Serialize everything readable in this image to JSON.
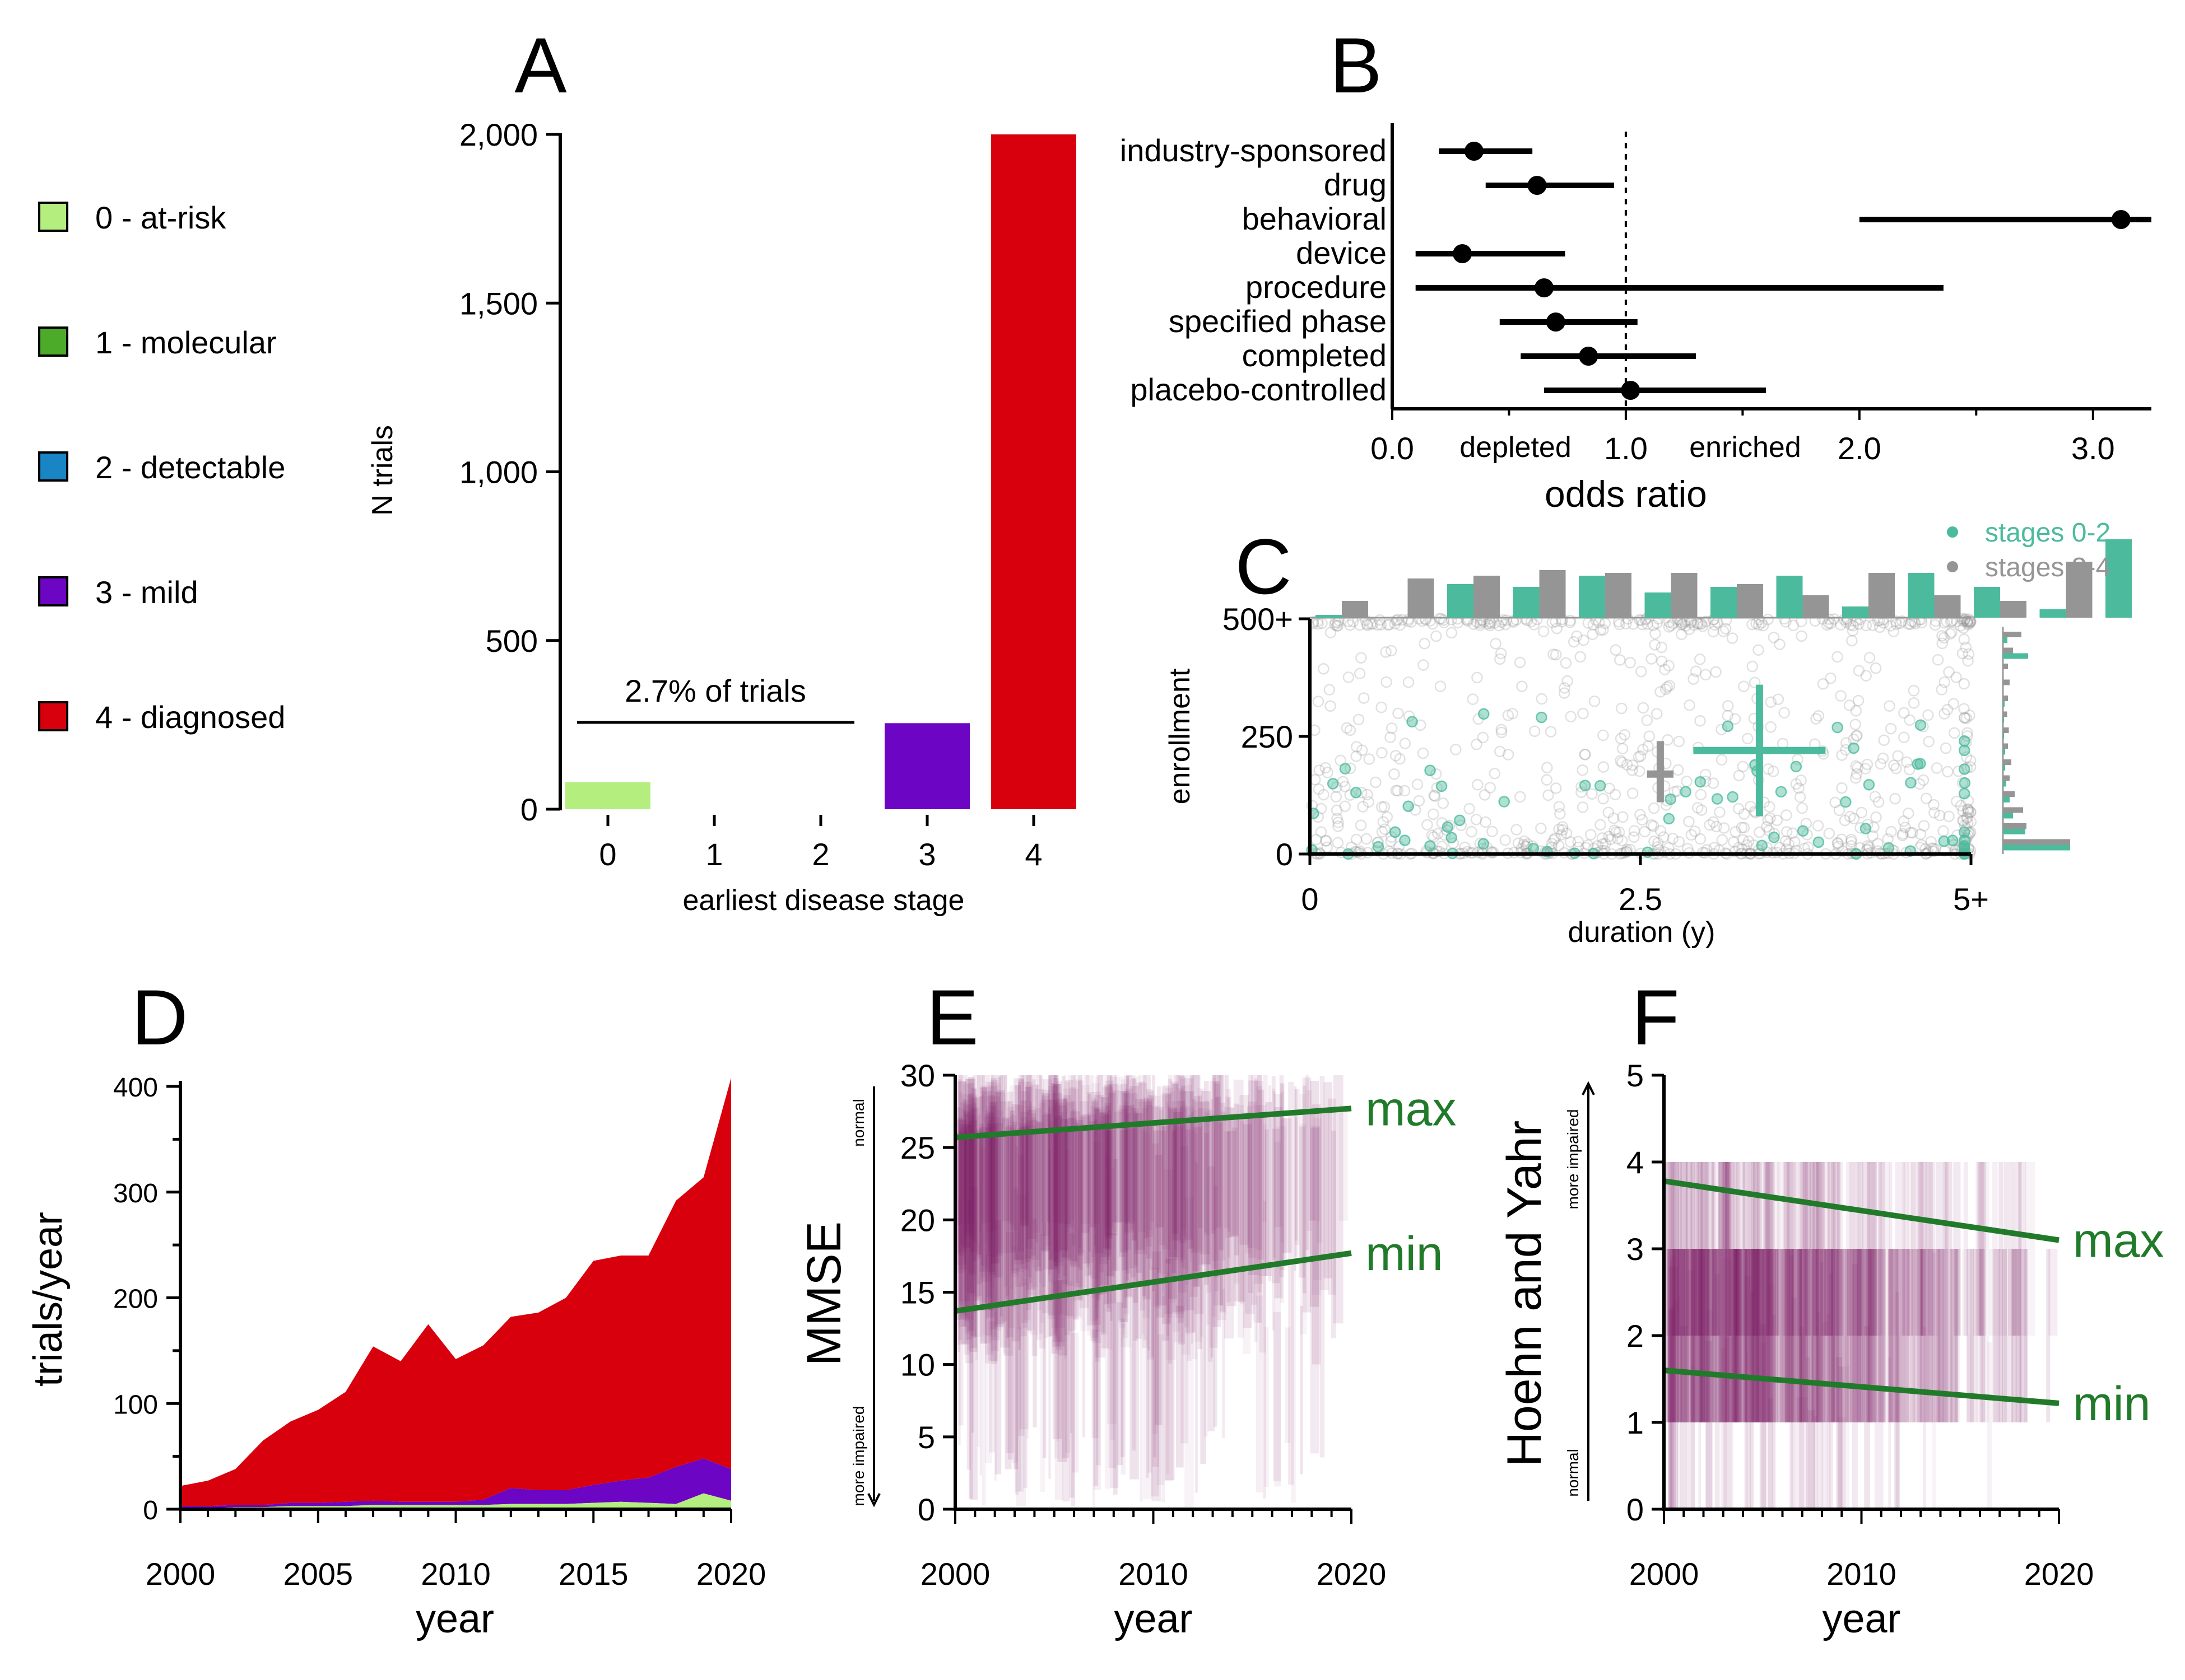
{
  "colors": {
    "stage0": "#b4ee7f",
    "stage1": "#4dab2a",
    "stage2": "#1a85c4",
    "stage3": "#6c05c4",
    "stage4": "#d8000d",
    "teal": "#4cbb9d",
    "gray": "#959595",
    "purple": "#7b1a63",
    "green": "#217a2a"
  },
  "legend": {
    "items": [
      {
        "label": "0 - at-risk",
        "color": "#b4ee7f"
      },
      {
        "label": "1 - molecular",
        "color": "#4dab2a"
      },
      {
        "label": "2 - detectable",
        "color": "#1a85c4"
      },
      {
        "label": "3 - mild",
        "color": "#6c05c4"
      },
      {
        "label": "4 - diagnosed",
        "color": "#d8000d"
      }
    ]
  },
  "chart_data": [
    {
      "panel": "A",
      "type": "bar",
      "xlabel": "earliest disease stage",
      "ylabel": "N trials",
      "ylim": [
        0,
        2000
      ],
      "yticks": [
        "0",
        "500",
        "1,000",
        "1,500",
        "2,000"
      ],
      "categories": [
        "0",
        "1",
        "2",
        "3",
        "4"
      ],
      "values": [
        80,
        0,
        0,
        255,
        2000
      ],
      "colors": [
        "#b4ee7f",
        "#4dab2a",
        "#1a85c4",
        "#6c05c4",
        "#d8000d"
      ],
      "annotation": "2.7% of trials"
    },
    {
      "panel": "B",
      "type": "scatter",
      "xlabel": "odds ratio",
      "xlim": [
        0,
        3.25
      ],
      "xticks": [
        "0.0",
        "1.0",
        "2.0",
        "3.0"
      ],
      "side_labels": [
        "depleted",
        "enriched"
      ],
      "reference_line": 1.0,
      "rows": [
        {
          "label": "industry-sponsored",
          "value": 0.35,
          "low": 0.2,
          "high": 0.6
        },
        {
          "label": "drug",
          "value": 0.62,
          "low": 0.4,
          "high": 0.95
        },
        {
          "label": "behavioral",
          "value": 3.12,
          "low": 2.0,
          "high": 3.25
        },
        {
          "label": "device",
          "value": 0.3,
          "low": 0.1,
          "high": 0.74
        },
        {
          "label": "procedure",
          "value": 0.65,
          "low": 0.1,
          "high": 2.36
        },
        {
          "label": "specified phase",
          "value": 0.7,
          "low": 0.46,
          "high": 1.05
        },
        {
          "label": "completed",
          "value": 0.84,
          "low": 0.55,
          "high": 1.3
        },
        {
          "label": "placebo-controlled",
          "value": 1.02,
          "low": 0.65,
          "high": 1.6
        }
      ]
    },
    {
      "panel": "C",
      "type": "scatter",
      "xlabel": "duration (y)",
      "ylabel": "enrollment",
      "xlim": [
        0,
        5
      ],
      "ylim": [
        0,
        500
      ],
      "xticks": [
        "0",
        "2.5",
        "5+"
      ],
      "yticks": [
        "0",
        "250",
        "500+"
      ],
      "series": [
        {
          "name": "stages 0-2",
          "color": "#4cbb9d",
          "center": [
            3.4,
            220
          ],
          "x_range": [
            2.9,
            3.9
          ],
          "y_range": [
            80,
            360
          ]
        },
        {
          "name": "stages 3-4",
          "color": "#959595",
          "center": [
            2.65,
            170
          ],
          "x_range": [
            2.55,
            2.75
          ],
          "y_range": [
            110,
            240
          ]
        }
      ],
      "top_histogram": {
        "bins": 20,
        "stages_0_2": [
          0.05,
          0,
          0.6,
          0.55,
          0.75,
          0.45,
          0.55,
          0.75,
          0.2,
          0.8,
          0.55,
          0.15,
          1.4
        ],
        "stages_3_4": [
          0.3,
          0.7,
          0.75,
          0.85,
          0.8,
          0.8,
          0.6,
          0.4,
          0.8,
          0.4,
          0.3,
          1.0
        ]
      }
    },
    {
      "panel": "D",
      "type": "area",
      "xlabel": "year",
      "ylabel": "trials/year",
      "xlim": [
        2000,
        2020
      ],
      "ylim": [
        0,
        400
      ],
      "xticks": [
        "2000",
        "2005",
        "2010",
        "2015",
        "2020"
      ],
      "yticks": [
        "0",
        "100",
        "200",
        "300",
        "400"
      ],
      "x": [
        2000,
        2001,
        2002,
        2003,
        2004,
        2005,
        2006,
        2007,
        2008,
        2009,
        2010,
        2011,
        2012,
        2013,
        2014,
        2015,
        2016,
        2017,
        2018,
        2019,
        2020
      ],
      "series": [
        {
          "color": "#b4ee7f",
          "values": [
            1,
            1,
            2,
            2,
            3,
            3,
            3,
            4,
            4,
            4,
            4,
            4,
            5,
            5,
            5,
            6,
            7,
            6,
            5,
            15,
            8
          ]
        },
        {
          "color": "#6c05c4",
          "values": [
            2,
            2,
            2,
            2,
            3,
            3,
            4,
            4,
            3,
            3,
            3,
            5,
            15,
            13,
            13,
            17,
            20,
            24,
            35,
            33,
            30
          ]
        },
        {
          "color": "#d8000d",
          "values": [
            19,
            24,
            34,
            61,
            77,
            88,
            104,
            146,
            133,
            168,
            135,
            146,
            162,
            168,
            182,
            212,
            213,
            210,
            252,
            266,
            370
          ]
        }
      ]
    },
    {
      "panel": "E",
      "type": "heatmap",
      "xlabel": "year",
      "ylabel": "MMSE",
      "xlim": [
        2000,
        2020
      ],
      "ylim": [
        0,
        30
      ],
      "xticks": [
        "2000",
        "2010",
        "2020"
      ],
      "yticks": [
        "0",
        "5",
        "10",
        "15",
        "20",
        "25",
        "30"
      ],
      "arrow_top": "normal",
      "arrow_bottom": "more impaired",
      "fit_lines": [
        {
          "label": "max",
          "y_start": 25.7,
          "y_end": 27.7
        },
        {
          "label": "min",
          "y_start": 13.7,
          "y_end": 17.7
        }
      ]
    },
    {
      "panel": "F",
      "type": "heatmap",
      "xlabel": "year",
      "ylabel": "Hoehn and Yahr",
      "xlim": [
        2000,
        2020
      ],
      "ylim": [
        0,
        5
      ],
      "xticks": [
        "2000",
        "2010",
        "2020"
      ],
      "yticks": [
        "0",
        "1",
        "2",
        "3",
        "4",
        "5"
      ],
      "arrow_top": "more impaired",
      "arrow_bottom": "normal",
      "fit_lines": [
        {
          "label": "max",
          "y_start": 3.78,
          "y_end": 3.1
        },
        {
          "label": "min",
          "y_start": 1.6,
          "y_end": 1.22
        }
      ]
    }
  ]
}
